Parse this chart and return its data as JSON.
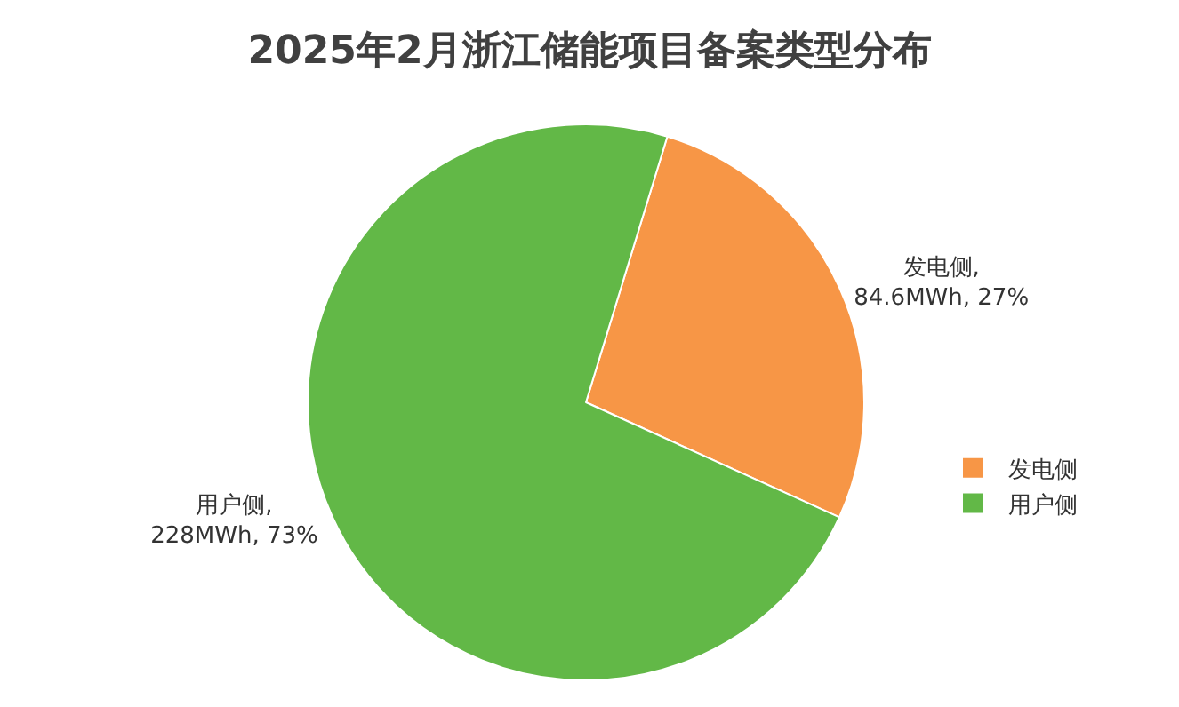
{
  "chart_data": {
    "type": "pie",
    "title": "2025年2月浙江储能项目备案类型分布",
    "categories": [
      "发电侧",
      "用户侧"
    ],
    "values": [
      84.6,
      228
    ],
    "colors": [
      "#f79646",
      "#62b847"
    ],
    "value_labels": [
      "发电侧,\n84.6MWh, 27%",
      "用户侧,\n228MWh, 73%"
    ],
    "legend": "right"
  }
}
